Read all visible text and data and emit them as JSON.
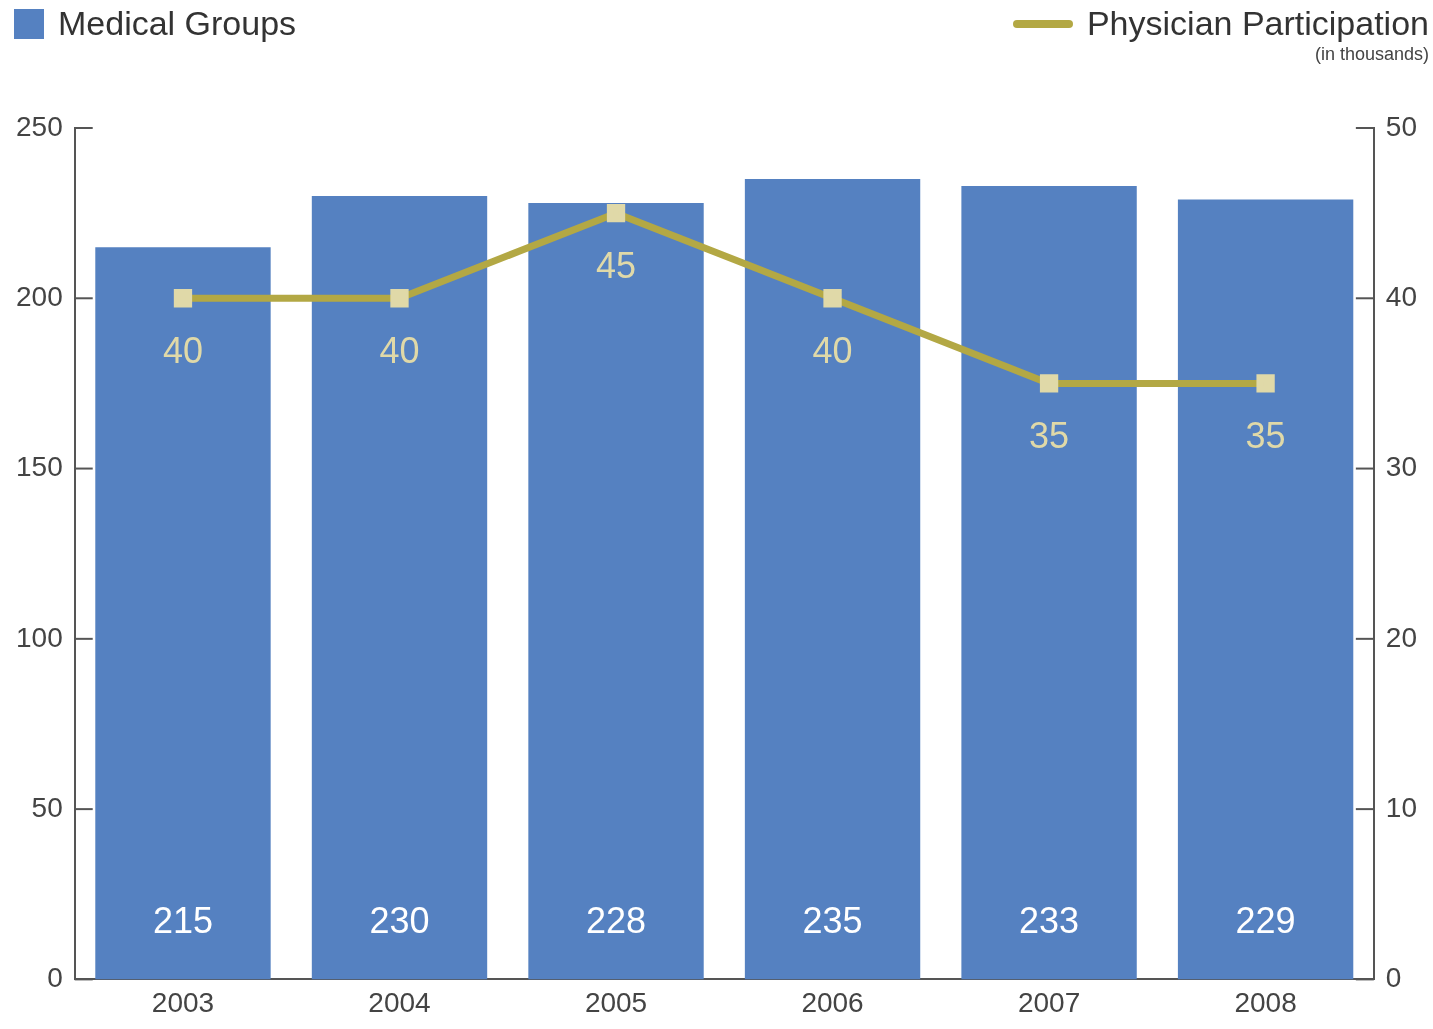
{
  "chart_data": {
    "type": "bar",
    "categories": [
      "2003",
      "2004",
      "2005",
      "2006",
      "2007",
      "2008"
    ],
    "series": [
      {
        "name": "Medical Groups",
        "color": "#5581c1",
        "values": [
          215,
          230,
          228,
          235,
          233,
          229
        ]
      },
      {
        "name": "Physician Participation",
        "type": "line",
        "axis": "y2",
        "color": "#b3a844",
        "values": [
          40,
          40,
          45,
          40,
          35,
          35
        ]
      }
    ],
    "ylim": [
      0,
      250
    ],
    "yticks": [
      0,
      50,
      100,
      150,
      200,
      250
    ],
    "y2lim": [
      0,
      50
    ],
    "y2ticks": [
      0,
      10,
      20,
      30,
      40,
      50
    ],
    "annotations": [
      "(in thousands)"
    ],
    "data_labels": true,
    "legend": "top",
    "grid": false,
    "marker": "square",
    "line_style": "solid"
  }
}
